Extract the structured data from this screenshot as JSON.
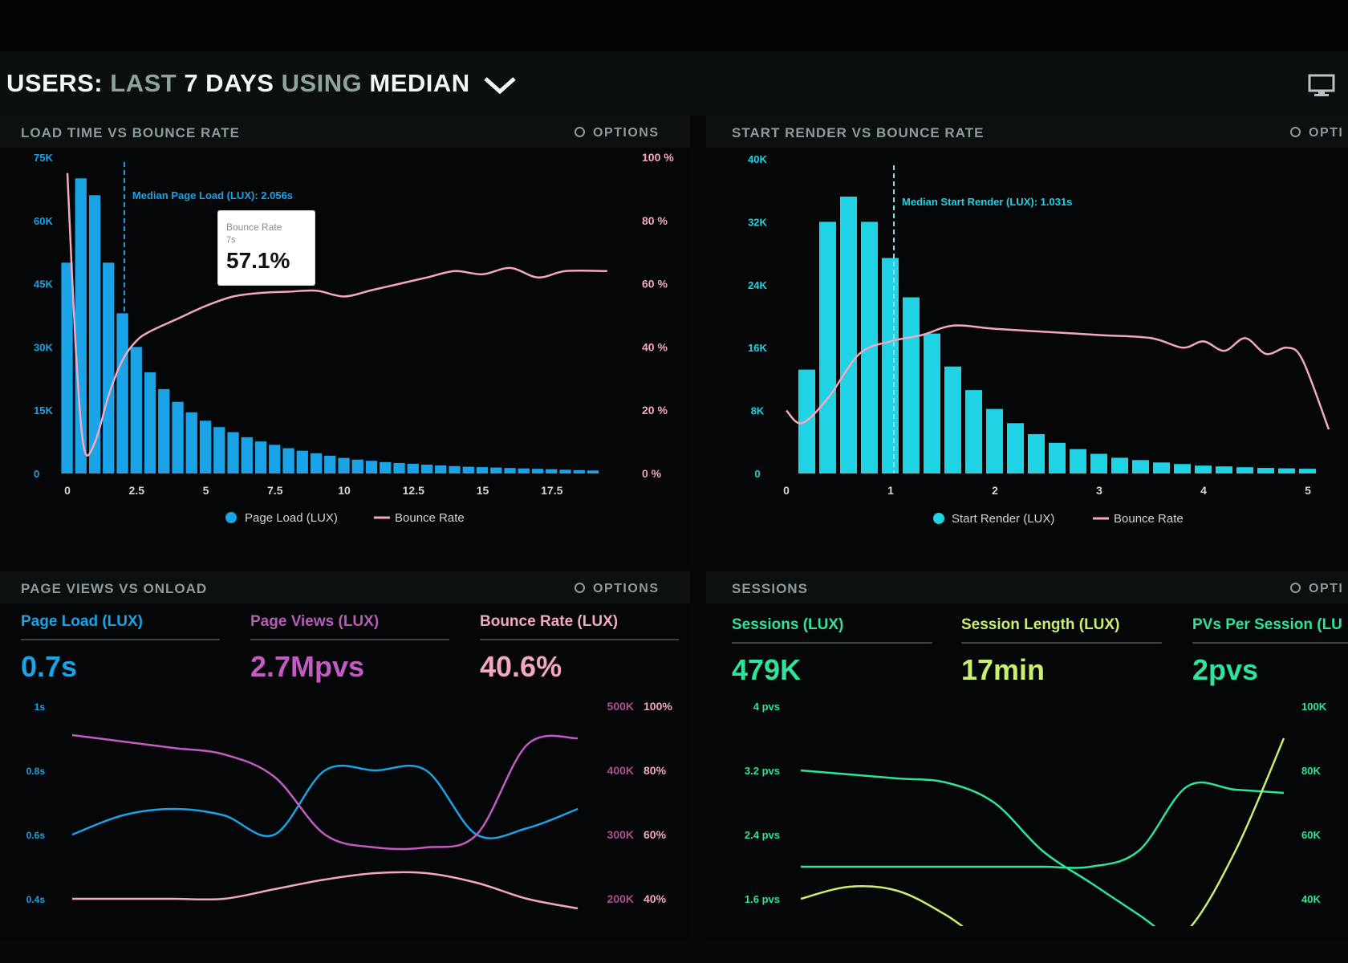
{
  "header": {
    "title_parts": {
      "a": "USERS:",
      "b": "LAST",
      "c": "7 DAYS",
      "d": "USING",
      "e": "MEDIAN"
    },
    "icons": [
      "chevron-down-icon",
      "monitor-icon"
    ]
  },
  "colors": {
    "blue": "#1aa3e6",
    "cyan": "#1fd3e4",
    "pink": "#f3a7c3",
    "magenta": "#c35cc2",
    "green": "#2fe39a",
    "lime": "#c9ef70"
  },
  "panels": {
    "load_bounce": {
      "title": "LOAD TIME VS BOUNCE RATE",
      "options": "OPTIONS",
      "median_label": "Median Page Load (LUX): 2.056s",
      "tooltip": {
        "title": "Bounce Rate",
        "sub": "7s",
        "value": "57.1%"
      },
      "legend": [
        "Page Load (LUX)",
        "Bounce Rate"
      ]
    },
    "start_bounce": {
      "title": "START RENDER VS BOUNCE RATE",
      "options": "OPTI",
      "median_label": "Median Start Render (LUX): 1.031s",
      "legend": [
        "Start Render (LUX)",
        "Bounce Rate"
      ]
    },
    "pageviews": {
      "title": "PAGE VIEWS VS ONLOAD",
      "options": "OPTIONS",
      "metrics": [
        {
          "label": "Page Load (LUX)",
          "value": "0.7s"
        },
        {
          "label": "Page Views (LUX)",
          "value": "2.7Mpvs"
        },
        {
          "label": "Bounce Rate (LUX)",
          "value": "40.6%"
        }
      ]
    },
    "sessions": {
      "title": "SESSIONS",
      "options": "OPTI",
      "metrics": [
        {
          "label": "Sessions (LUX)",
          "value": "479K"
        },
        {
          "label": "Session Length (LUX)",
          "value": "17min"
        },
        {
          "label": "PVs Per Session (LU",
          "value": "2pvs"
        }
      ]
    }
  },
  "chart_data": [
    {
      "type": "bar",
      "xlim": [
        0,
        20
      ],
      "x_ticks": [
        "0",
        "2.5",
        "5",
        "7.5",
        "10",
        "12.5",
        "15",
        "17.5"
      ],
      "y_ticks": [
        "0",
        "15K",
        "30K",
        "45K",
        "60K",
        "75K"
      ],
      "ylim": [
        0,
        75000
      ],
      "y2_ticks": [
        "0 %",
        "20 %",
        "40 %",
        "60 %",
        "80 %",
        "100 %"
      ],
      "y2lim": [
        0,
        100
      ],
      "median_x": 2.056,
      "bar_width": 0.5,
      "series": [
        {
          "name": "Page Load (LUX)",
          "type": "bar",
          "x": [
            0,
            0.5,
            1,
            1.5,
            2,
            2.5,
            3,
            3.5,
            4,
            4.5,
            5,
            5.5,
            6,
            6.5,
            7,
            7.5,
            8,
            8.5,
            9,
            9.5,
            10,
            10.5,
            11,
            11.5,
            12,
            12.5,
            13,
            13.5,
            14,
            14.5,
            15,
            15.5,
            16,
            16.5,
            17,
            17.5,
            18,
            18.5,
            19
          ],
          "values": [
            50000,
            70000,
            66000,
            50000,
            38000,
            30000,
            24000,
            20000,
            17000,
            14500,
            12500,
            11000,
            9800,
            8600,
            7600,
            6800,
            6000,
            5400,
            4800,
            4200,
            3700,
            3300,
            3000,
            2700,
            2500,
            2300,
            2100,
            1900,
            1750,
            1600,
            1500,
            1400,
            1300,
            1200,
            1100,
            1000,
            900,
            800,
            700
          ]
        },
        {
          "name": "Bounce Rate",
          "type": "line",
          "axis": "right",
          "x": [
            0,
            0.3,
            0.6,
            1,
            1.5,
            2,
            2.5,
            3,
            4,
            5,
            6,
            7,
            8,
            9,
            10,
            11,
            12,
            13,
            14,
            15,
            16,
            17,
            18,
            19.5
          ],
          "values": [
            95,
            40,
            8,
            10,
            25,
            36,
            42,
            45,
            49,
            53,
            56,
            57.1,
            57.5,
            57.8,
            56,
            58,
            60,
            62,
            64,
            63,
            65,
            62,
            64,
            64
          ]
        }
      ]
    },
    {
      "type": "bar",
      "xlim": [
        0,
        5
      ],
      "x_ticks": [
        "0",
        "1",
        "2",
        "3",
        "4",
        "5"
      ],
      "y_ticks": [
        "0",
        "8K",
        "16K",
        "24K",
        "32K",
        "40K"
      ],
      "ylim": [
        0,
        40000
      ],
      "median_x": 1.031,
      "bar_width": 0.2,
      "series": [
        {
          "name": "Start Render (LUX)",
          "type": "bar",
          "x": [
            0.2,
            0.4,
            0.6,
            0.8,
            1.0,
            1.2,
            1.4,
            1.6,
            1.8,
            2.0,
            2.2,
            2.4,
            2.6,
            2.8,
            3.0,
            3.2,
            3.4,
            3.6,
            3.8,
            4.0,
            4.2,
            4.4,
            4.6,
            4.8,
            5.0
          ],
          "values": [
            13200,
            32000,
            35200,
            32000,
            27400,
            22400,
            17800,
            13600,
            10600,
            8200,
            6400,
            5000,
            3900,
            3100,
            2500,
            2000,
            1700,
            1400,
            1200,
            1000,
            900,
            800,
            700,
            650,
            600
          ]
        },
        {
          "name": "Bounce Rate",
          "type": "line",
          "axis": "right",
          "x": [
            0,
            0.15,
            0.4,
            0.7,
            1.0,
            1.3,
            1.6,
            2.0,
            2.5,
            3.0,
            3.5,
            3.8,
            4.0,
            4.2,
            4.4,
            4.6,
            4.8,
            4.95,
            5.2
          ],
          "values": [
            20,
            16,
            24,
            38,
            42,
            44,
            47,
            46,
            45,
            44,
            43,
            40,
            42,
            39,
            43,
            38,
            40,
            36,
            14
          ]
        }
      ]
    },
    {
      "type": "line",
      "y_ticks": [
        "0.4s",
        "0.6s",
        "0.8s",
        "1s"
      ],
      "y2_ticks": [
        "200K",
        "300K",
        "400K",
        "500K"
      ],
      "y3_ticks": [
        "40%",
        "60%",
        "80%",
        "100%"
      ],
      "series": [
        {
          "name": "Page Load (LUX)",
          "x": [
            0,
            1,
            2,
            3,
            4,
            5,
            6,
            7,
            8,
            9,
            10
          ],
          "values": [
            0.6,
            0.66,
            0.68,
            0.66,
            0.6,
            0.8,
            0.8,
            0.8,
            0.6,
            0.62,
            0.68
          ]
        },
        {
          "name": "Page Views (LUX)",
          "x": [
            0,
            1,
            2,
            3,
            4,
            5,
            6,
            7,
            8,
            9,
            10
          ],
          "values": [
            455000,
            445000,
            435000,
            425000,
            390000,
            300000,
            280000,
            280000,
            300000,
            440000,
            450000
          ]
        },
        {
          "name": "Bounce Rate (LUX)",
          "x": [
            0,
            1,
            2,
            3,
            4,
            5,
            6,
            7,
            8,
            9,
            10
          ],
          "values": [
            40,
            40,
            40,
            40,
            43,
            46,
            48,
            48,
            45,
            40,
            37
          ]
        }
      ]
    },
    {
      "type": "line",
      "y_ticks": [
        "1.6 pvs",
        "2.4 pvs",
        "3.2 pvs",
        "4 pvs"
      ],
      "y2_ticks": [
        "40K",
        "60K",
        "80K",
        "100K"
      ],
      "series": [
        {
          "name": "Sessions (LUX)",
          "x": [
            0,
            1,
            2,
            3,
            4,
            5,
            6,
            7,
            8,
            9,
            10
          ],
          "values": [
            3.2,
            3.15,
            3.1,
            3.05,
            2.8,
            2.2,
            1.8,
            1.4,
            1.0,
            1.0,
            1.0
          ]
        },
        {
          "name": "Session Length (LUX)",
          "x": [
            0,
            1,
            2,
            3,
            4,
            5,
            6,
            7,
            8,
            9,
            10
          ],
          "values": [
            50000,
            50000,
            50000,
            50000,
            50000,
            50000,
            50000,
            55000,
            75000,
            74000,
            73000
          ]
        },
        {
          "name": "PVs Per Session (LUX)",
          "x": [
            0,
            1,
            2,
            3,
            4,
            5,
            6,
            7,
            8,
            9,
            10
          ],
          "values": [
            1.6,
            1.75,
            1.7,
            1.4,
            1.0,
            0.9,
            0.9,
            0.9,
            1.2,
            2.2,
            3.6
          ]
        }
      ]
    }
  ]
}
